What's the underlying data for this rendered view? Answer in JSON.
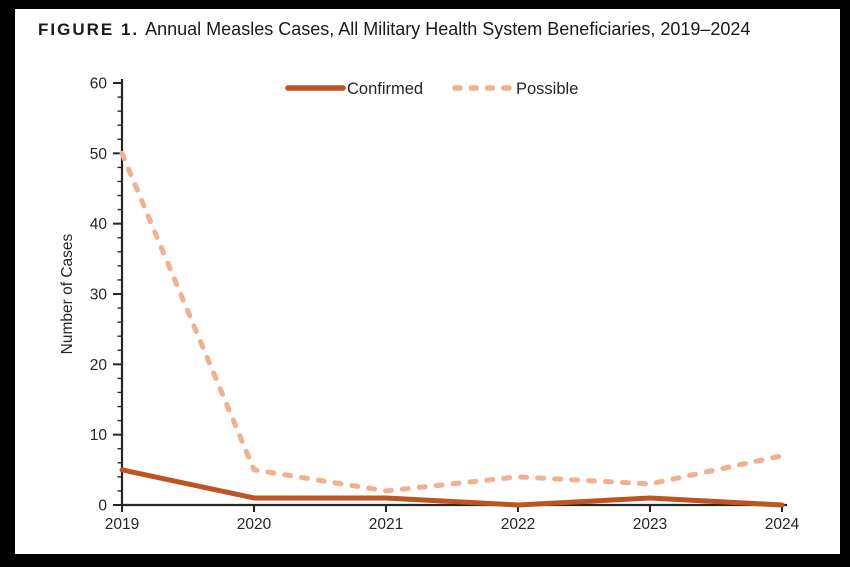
{
  "figure": {
    "label": "FIGURE 1.",
    "title": "Annual Measles Cases, All Military Health System Beneficiaries, 2019–2024"
  },
  "chart_data": {
    "type": "line",
    "x": [
      "2019",
      "2020",
      "2021",
      "2022",
      "2023",
      "2024"
    ],
    "series": [
      {
        "name": "Confirmed",
        "values": [
          5,
          1,
          1,
          0,
          1,
          0
        ],
        "color": "#BF5322",
        "style": "solid"
      },
      {
        "name": "Possible",
        "values": [
          50,
          5,
          2,
          4,
          3,
          7
        ],
        "color": "#F3B08C",
        "style": "dashed"
      }
    ],
    "title": "FIGURE 1. Annual Measles Cases, All Military Health System Beneficiaries, 2019–2024",
    "xlabel": "",
    "ylabel": "Number of Cases",
    "ylim": [
      0,
      60
    ],
    "y_major_step": 10,
    "y_minor_step": 2,
    "grid": false,
    "legend_position": "top-center",
    "legend": [
      "Confirmed",
      "Possible"
    ],
    "axis_color": "#262626",
    "background_color": "#FFFFFF",
    "frame_color": "#000000"
  }
}
